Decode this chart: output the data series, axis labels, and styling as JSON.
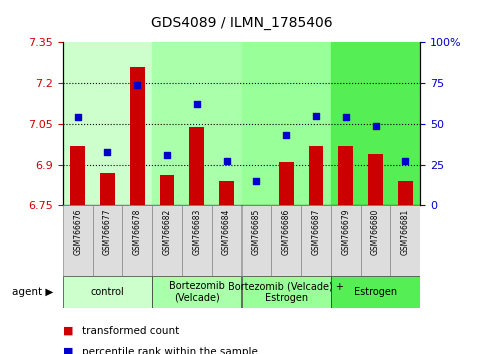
{
  "title": "GDS4089 / ILMN_1785406",
  "samples": [
    "GSM766676",
    "GSM766677",
    "GSM766678",
    "GSM766682",
    "GSM766683",
    "GSM766684",
    "GSM766685",
    "GSM766686",
    "GSM766687",
    "GSM766679",
    "GSM766680",
    "GSM766681"
  ],
  "bar_values": [
    6.97,
    6.87,
    7.26,
    6.86,
    7.04,
    6.84,
    6.75,
    6.91,
    6.97,
    6.97,
    6.94,
    6.84
  ],
  "dot_values": [
    54,
    33,
    74,
    31,
    62,
    27,
    15,
    43,
    55,
    54,
    49,
    27
  ],
  "ylim_left": [
    6.75,
    7.35
  ],
  "ylim_right": [
    0,
    100
  ],
  "yticks_left": [
    6.75,
    6.9,
    7.05,
    7.2,
    7.35
  ],
  "ytick_labels_left": [
    "6.75",
    "6.9",
    "7.05",
    "7.2",
    "7.35"
  ],
  "yticks_right": [
    0,
    25,
    50,
    75,
    100
  ],
  "ytick_labels_right": [
    "0",
    "25",
    "50",
    "75",
    "100%"
  ],
  "hlines": [
    6.9,
    7.05,
    7.2
  ],
  "bar_color": "#cc0000",
  "dot_color": "#0000cc",
  "bar_width": 0.5,
  "col_colors": [
    "#ccffcc",
    "#ccffcc",
    "#ccffcc",
    "#aaffaa",
    "#aaffaa",
    "#aaffaa",
    "#99ff99",
    "#99ff99",
    "#99ff99",
    "#55ee55",
    "#55ee55",
    "#55ee55"
  ],
  "groups": [
    {
      "label": "control",
      "start": 0,
      "end": 3,
      "color": "#ccffcc"
    },
    {
      "label": "Bortezomib\n(Velcade)",
      "start": 3,
      "end": 6,
      "color": "#aaffaa"
    },
    {
      "label": "Bortezomib (Velcade) +\nEstrogen",
      "start": 6,
      "end": 9,
      "color": "#99ff99"
    },
    {
      "label": "Estrogen",
      "start": 9,
      "end": 12,
      "color": "#55ee55"
    }
  ],
  "bar_left_color": "#cc0000",
  "dot_right_color": "#0000cc",
  "legend_items": [
    {
      "label": "transformed count",
      "color": "#cc0000"
    },
    {
      "label": "percentile rank within the sample",
      "color": "#0000cc"
    }
  ],
  "figsize": [
    4.83,
    3.54
  ],
  "dpi": 100
}
